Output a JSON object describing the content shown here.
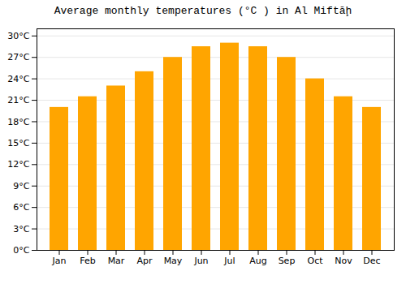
{
  "chart_data": {
    "type": "bar",
    "title": "Average monthly temperatures (°C ) in Al Miftāḩ",
    "categories": [
      "Jan",
      "Feb",
      "Mar",
      "Apr",
      "May",
      "Jun",
      "Jul",
      "Aug",
      "Sep",
      "Oct",
      "Nov",
      "Dec"
    ],
    "values": [
      20.0,
      21.5,
      23.0,
      25.0,
      27.0,
      28.5,
      29.0,
      28.5,
      27.0,
      24.0,
      21.5,
      20.0
    ],
    "color": "#FFA500",
    "ylim": [
      0,
      31
    ],
    "yticks": [
      {
        "value": 0,
        "label": "0°C"
      },
      {
        "value": 3,
        "label": "3°C"
      },
      {
        "value": 6,
        "label": "6°C"
      },
      {
        "value": 9,
        "label": "9°C"
      },
      {
        "value": 12,
        "label": "12°C"
      },
      {
        "value": 15,
        "label": "15°C"
      },
      {
        "value": 18,
        "label": "18°C"
      },
      {
        "value": 21,
        "label": "21°C"
      },
      {
        "value": 24,
        "label": "24°C"
      },
      {
        "value": 27,
        "label": "27°C"
      },
      {
        "value": 30,
        "label": "30°C"
      }
    ],
    "grid": true
  }
}
